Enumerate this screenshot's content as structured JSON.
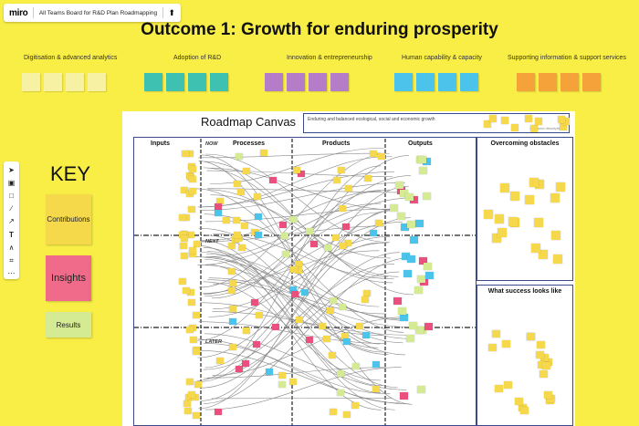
{
  "topbar": {
    "logo": "miro",
    "board_name": "All Teams Board for R&D Plan Roadmapping"
  },
  "title": "Outcome 1: Growth for enduring prosperity",
  "categories": [
    {
      "label": "Digitisation & advanced analytics",
      "color": "#f7f1a4"
    },
    {
      "label": "Adoption of R&D",
      "color": "#3fc1b1"
    },
    {
      "label": "Innovation & entrepreneurship",
      "color": "#b57cc7"
    },
    {
      "label": "Human capability & capacity",
      "color": "#4cc3ea"
    },
    {
      "label": "Supporting information & support services",
      "color": "#f5a23b"
    }
  ],
  "toolbar": {
    "icons": [
      "cursor-icon",
      "sticky-note-icon",
      "shape-icon",
      "pen-icon",
      "arrow-icon",
      "text-icon",
      "connector-icon",
      "frame-icon",
      "more-icon"
    ]
  },
  "key": {
    "title": "KEY",
    "items": [
      {
        "label": "Contributions",
        "color": "#f5d94a"
      },
      {
        "label": "Insights",
        "color": "#f06a8a"
      },
      {
        "label": "Results",
        "color": "#d5eb93"
      }
    ]
  },
  "canvas": {
    "title": "Roadmap Canvas",
    "header_text": "Enduring and balanced ecological, social and economic growth",
    "header_description": "Outcome description",
    "columns": [
      "Inputs",
      "Processes",
      "Products",
      "Outputs"
    ],
    "phases": [
      "NOW",
      "NEXT",
      "LATER"
    ],
    "side_panels": [
      "Overcoming obstacles",
      "What success looks like"
    ]
  }
}
